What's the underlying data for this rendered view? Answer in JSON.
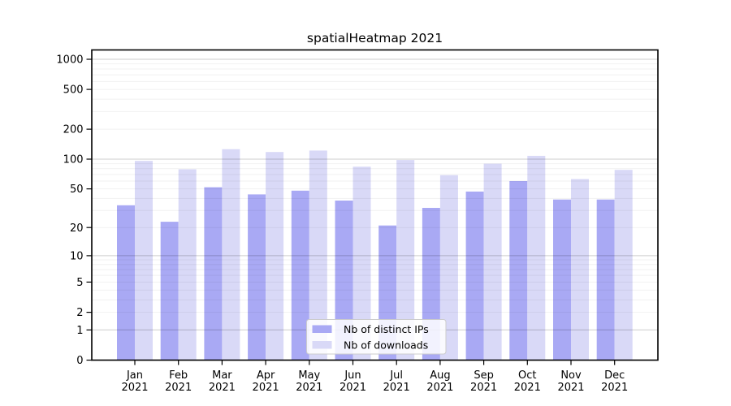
{
  "chart_data": {
    "type": "bar",
    "title": "spatialHeatmap 2021",
    "categories": [
      "Jan 2021",
      "Feb 2021",
      "Mar 2021",
      "Apr 2021",
      "May 2021",
      "Jun 2021",
      "Jul 2021",
      "Aug 2021",
      "Sep 2021",
      "Oct 2021",
      "Nov 2021",
      "Dec 2021"
    ],
    "series": [
      {
        "name": "Nb of distinct IPs",
        "color": "#a9a9f4",
        "values": [
          34,
          23,
          52,
          44,
          48,
          38,
          21,
          32,
          47,
          60,
          39,
          39
        ]
      },
      {
        "name": "Nb of downloads",
        "color": "#d9d9f7",
        "values": [
          96,
          79,
          126,
          118,
          122,
          84,
          98,
          69,
          90,
          108,
          63,
          78
        ]
      }
    ],
    "yscale": "symlog-log1p",
    "yticks": [
      1000,
      500,
      200,
      100,
      50,
      20,
      10,
      5,
      2,
      1,
      0
    ],
    "ylim": [
      0,
      1240
    ],
    "xlabel": "",
    "ylabel": "",
    "grid": true,
    "legend_position": "lower-center",
    "colors": {
      "axis": "#000000",
      "major_grid": "rgba(0,0,0,0.20)",
      "minor_grid": "rgba(0,0,0,0.055)",
      "legend_border": "#cccccc",
      "legend_background": "#ffffff"
    }
  }
}
